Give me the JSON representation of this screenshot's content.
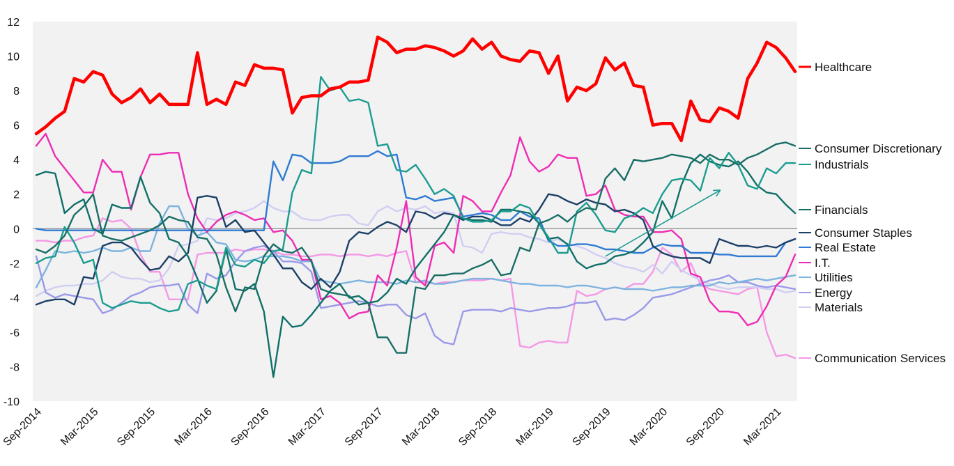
{
  "chart_data": {
    "type": "line",
    "title": "",
    "xlabel": "",
    "ylabel": "",
    "ylim": [
      -10,
      12
    ],
    "yticks": [
      12,
      10,
      8,
      6,
      4,
      2,
      0,
      -2,
      -4,
      -6,
      -8,
      -10
    ],
    "xticks": [
      "Sep-2014",
      "Mar-2015",
      "Sep-2015",
      "Mar-2016",
      "Sep-2016",
      "Mar-2017",
      "Sep-2017",
      "Mar-2018",
      "Sep-2018",
      "Mar-2019",
      "Sep-2019",
      "Mar-2020",
      "Sep-2020",
      "Mar-2021"
    ],
    "x_start": "Sep-2014",
    "x_end": "Aug-2021",
    "grid": false,
    "background": "#f2f2f2",
    "legend": "right, labels at line ends",
    "series": [
      {
        "name": "Healthcare",
        "color": "#ff0000",
        "values": [
          5.5,
          5.9,
          6.4,
          6.8,
          8.7,
          8.5,
          9.1,
          8.9,
          7.8,
          7.3,
          7.6,
          8.1,
          7.3,
          7.8,
          7.2,
          7.2,
          7.2,
          10.2,
          7.2,
          7.5,
          7.2,
          8.5,
          8.3,
          9.5,
          9.3,
          9.3,
          9.2,
          6.7,
          7.6,
          7.7,
          7.7,
          8.1,
          8.2,
          8.5,
          8.5,
          8.6,
          11.1,
          10.8,
          10.2,
          10.4,
          10.4,
          10.6,
          10.5,
          10.3,
          10.0,
          10.3,
          11.0,
          10.4,
          10.8,
          10.0,
          9.8,
          9.7,
          10.3,
          10.2,
          9.0,
          10.0,
          7.4,
          8.2,
          8.0,
          8.4,
          9.9,
          9.2,
          9.6,
          8.3,
          8.2,
          6.0,
          6.1,
          6.1,
          5.1,
          7.4,
          6.3,
          6.2,
          7.0,
          6.8,
          6.4,
          8.7,
          9.6,
          10.8,
          10.5,
          9.9,
          9.1
        ]
      },
      {
        "name": "Consumer Discretionary",
        "color": "#1a6e66",
        "values": [
          -1.2,
          -1.4,
          -1.0,
          -0.4,
          0.8,
          1.3,
          2.0,
          -0.4,
          -0.6,
          -0.7,
          -0.5,
          -0.3,
          -0.1,
          0.2,
          0.7,
          0.5,
          0.4,
          -0.5,
          -0.6,
          -1.5,
          -3.4,
          -4.8,
          -3.4,
          -3.5,
          -1.6,
          -0.9,
          -1.3,
          -1.4,
          -1.1,
          -1.9,
          -3.5,
          -3.7,
          -3.8,
          -3.9,
          -4.4,
          -4.3,
          -6.3,
          -6.3,
          -7.2,
          -7.2,
          -3.4,
          -3.5,
          -2.7,
          -2.7,
          -2.6,
          -2.6,
          -2.3,
          -2.1,
          -1.8,
          -2.7,
          -2.6,
          -1.1,
          -1.3,
          0.3,
          0.5,
          0.8,
          0.4,
          0.9,
          1.2,
          1.1,
          2.9,
          3.5,
          2.8,
          4.0,
          3.9,
          4.0,
          4.1,
          4.3,
          4.2,
          4.1,
          3.8,
          4.3,
          4.0,
          4.0,
          3.7,
          4.1,
          4.3,
          4.6,
          4.9,
          5.0,
          4.8
        ]
      },
      {
        "name": "Industrials",
        "color": "#1b9c8f",
        "values": [
          -2.0,
          -1.7,
          -1.6,
          0.1,
          -0.8,
          -2.0,
          -1.8,
          -4.3,
          -4.6,
          -4.4,
          -4.2,
          -4.3,
          -4.3,
          -4.6,
          -4.8,
          -4.7,
          -3.2,
          -3.0,
          -3.3,
          -3.5,
          -1.1,
          -2.1,
          -2.2,
          -1.8,
          -2.0,
          -1.3,
          -1.2,
          2.1,
          3.4,
          3.2,
          8.8,
          8.0,
          8.2,
          7.4,
          7.5,
          7.3,
          4.8,
          4.9,
          3.4,
          3.3,
          3.7,
          2.9,
          2.0,
          2.3,
          1.9,
          0.6,
          0.4,
          0.4,
          0.5,
          1.0,
          1.0,
          1.4,
          1.2,
          0.3,
          -0.5,
          -1.4,
          -1.4,
          1.0,
          1.5,
          0.8,
          -0.1,
          -0.2,
          0.6,
          0.8,
          1.2,
          0.9,
          2.0,
          2.8,
          2.9,
          2.8,
          2.2,
          4.1,
          3.5,
          4.4,
          3.7,
          2.5,
          2.3,
          3.5,
          3.2,
          3.8,
          3.8
        ]
      },
      {
        "name": "Financials",
        "color": "#0f7068",
        "values": [
          3.1,
          3.3,
          3.2,
          0.9,
          1.4,
          1.7,
          0.0,
          -0.3,
          1.4,
          1.2,
          1.2,
          3.0,
          1.5,
          0.9,
          -0.6,
          -0.8,
          -1.6,
          -2.9,
          -4.3,
          -3.6,
          -1.2,
          -3.5,
          -3.6,
          -3.2,
          -4.8,
          -8.6,
          -5.1,
          -5.7,
          -5.6,
          -5.0,
          -4.3,
          -3.6,
          -3.2,
          -4.0,
          -3.9,
          -4.3,
          -4.2,
          -3.7,
          -2.9,
          -3.2,
          -2.3,
          -1.6,
          -0.9,
          -0.2,
          0.8,
          0.6,
          0.5,
          0.5,
          0.4,
          1.1,
          1.1,
          1.0,
          0.9,
          0.3,
          -0.6,
          -0.5,
          -0.9,
          -1.9,
          -2.3,
          -2.1,
          -2.0,
          -1.6,
          -1.5,
          -1.3,
          -0.8,
          -0.2,
          1.6,
          0.6,
          2.5,
          3.8,
          4.3,
          3.9,
          3.7,
          3.6,
          3.9,
          3.3,
          2.5,
          2.1,
          2.0,
          1.4,
          0.9
        ]
      },
      {
        "name": "Consumer Staples",
        "color": "#1c3f66",
        "values": [
          -4.4,
          -4.2,
          -4.1,
          -4.1,
          -4.4,
          -2.8,
          -2.9,
          -1.0,
          -0.8,
          -0.8,
          -1.1,
          -1.8,
          -2.4,
          -2.3,
          -1.6,
          -1.9,
          -1.4,
          1.8,
          1.9,
          1.8,
          0.1,
          0.5,
          -0.2,
          -0.1,
          -0.8,
          -1.5,
          -2.3,
          -2.3,
          -3.1,
          -3.5,
          -2.9,
          -3.4,
          -2.5,
          -0.7,
          -0.2,
          -0.3,
          0.1,
          0.4,
          0.2,
          -0.2,
          1.0,
          0.9,
          0.6,
          0.9,
          0.8,
          0.5,
          0.7,
          0.7,
          0.5,
          0.2,
          0.2,
          0.6,
          0.4,
          1.1,
          2.0,
          1.9,
          1.6,
          1.4,
          1.7,
          1.5,
          1.4,
          1.0,
          1.1,
          0.9,
          0.5,
          -1.0,
          -1.4,
          -1.6,
          -1.7,
          -1.7,
          -1.7,
          -2.0,
          -0.6,
          -0.8,
          -1.0,
          -1.0,
          -1.1,
          -1.0,
          -1.1,
          -0.8,
          -0.6
        ]
      },
      {
        "name": "Real Estate",
        "color": "#2e7bd3",
        "values": [
          0.0,
          -0.1,
          -0.1,
          -0.1,
          -0.1,
          -0.1,
          -0.1,
          -0.1,
          -0.1,
          -0.1,
          -0.1,
          -0.1,
          -0.1,
          -0.1,
          -0.1,
          -0.1,
          -0.1,
          -0.1,
          -0.1,
          -0.1,
          -0.1,
          -0.1,
          -0.1,
          -0.1,
          -0.1,
          3.9,
          2.8,
          4.3,
          4.2,
          3.8,
          3.8,
          3.8,
          3.9,
          4.2,
          4.2,
          4.2,
          4.5,
          4.2,
          4.3,
          1.8,
          1.7,
          1.9,
          1.6,
          1.7,
          1.8,
          0.7,
          0.8,
          0.9,
          0.8,
          0.5,
          0.5,
          1.0,
          0.7,
          0.6,
          -0.7,
          -1.0,
          -1.0,
          -0.9,
          -0.9,
          -1.0,
          -1.2,
          -1.2,
          -1.3,
          -1.4,
          -1.4,
          -1.1,
          -0.9,
          -1.0,
          -1.0,
          -1.4,
          -1.4,
          -1.4,
          -1.5,
          -1.5,
          -1.6,
          -1.6,
          -1.6,
          -1.6,
          -1.6,
          -0.8,
          -0.6
        ]
      },
      {
        "name": "I.T.",
        "color": "#ee2cb4",
        "values": [
          4.8,
          5.5,
          4.2,
          3.5,
          2.8,
          2.1,
          2.1,
          4.0,
          3.3,
          3.3,
          1.1,
          3.0,
          4.3,
          4.3,
          4.4,
          4.4,
          2.0,
          0.6,
          -0.2,
          0.4,
          0.8,
          1.0,
          0.8,
          0.5,
          0.6,
          -0.2,
          -0.1,
          -0.7,
          -1.8,
          -1.8,
          -4.1,
          -3.9,
          -4.3,
          -5.2,
          -4.9,
          -4.8,
          -2.7,
          -3.3,
          -1.1,
          1.6,
          -2.8,
          -3.3,
          -1.0,
          -0.8,
          -1.4,
          1.9,
          1.6,
          1.0,
          1.0,
          2.1,
          3.1,
          5.3,
          3.9,
          3.3,
          3.6,
          4.3,
          4.1,
          4.1,
          1.9,
          2.0,
          2.5,
          1.1,
          0.8,
          0.7,
          0.7,
          -0.2,
          -0.2,
          -0.1,
          -0.6,
          -2.6,
          -2.8,
          -4.2,
          -4.8,
          -4.8,
          -4.9,
          -5.6,
          -5.4,
          -4.5,
          -3.3,
          -2.8,
          -1.5
        ]
      },
      {
        "name": "Utilities",
        "color": "#7db3df",
        "values": [
          -3.4,
          -2.4,
          -1.3,
          -1.4,
          -1.3,
          -1.4,
          -1.3,
          -1.1,
          -1.3,
          -1.3,
          -1.1,
          -1.3,
          -1.3,
          0.3,
          1.3,
          1.3,
          0.0,
          -0.4,
          -0.2,
          -0.8,
          -0.9,
          -1.8,
          -1.9,
          -1.8,
          -1.6,
          -1.6,
          -1.6,
          -1.7,
          -1.9,
          -1.9,
          -3.0,
          -3.1,
          -3.2,
          -3.1,
          -3.0,
          -3.1,
          -3.1,
          -3.1,
          -3.2,
          -3.0,
          -3.1,
          -3.0,
          -3.2,
          -3.2,
          -3.1,
          -3.0,
          -2.9,
          -2.9,
          -2.9,
          -3.0,
          -3.1,
          -3.2,
          -3.2,
          -3.3,
          -3.3,
          -3.3,
          -3.4,
          -3.3,
          -3.3,
          -3.4,
          -3.5,
          -3.4,
          -3.5,
          -3.5,
          -3.5,
          -3.6,
          -3.5,
          -3.4,
          -3.4,
          -3.3,
          -3.3,
          -3.3,
          -3.1,
          -3.2,
          -3.1,
          -3.0,
          -2.9,
          -3.0,
          -2.9,
          -2.8,
          -2.7
        ]
      },
      {
        "name": "Energy",
        "color": "#9a99e8",
        "values": [
          -1.6,
          -3.7,
          -4.0,
          -3.8,
          -3.9,
          -4.0,
          -4.1,
          -4.9,
          -4.7,
          -4.3,
          -3.9,
          -3.7,
          -3.4,
          -3.3,
          -3.3,
          -3.2,
          -4.4,
          -4.9,
          -2.6,
          -2.9,
          -2.7,
          -1.9,
          -1.3,
          -1.1,
          -1.0,
          -1.3,
          -1.9,
          -1.9,
          -2.0,
          -2.5,
          -4.6,
          -4.5,
          -4.4,
          -4.3,
          -4.2,
          -4.3,
          -4.5,
          -4.4,
          -4.4,
          -5.0,
          -5.2,
          -4.9,
          -6.2,
          -6.6,
          -6.7,
          -4.8,
          -4.7,
          -4.7,
          -4.7,
          -4.8,
          -4.6,
          -4.7,
          -4.8,
          -4.7,
          -4.6,
          -4.6,
          -4.5,
          -4.3,
          -4.3,
          -4.2,
          -5.3,
          -5.2,
          -5.3,
          -5.0,
          -4.6,
          -4.0,
          -3.9,
          -3.8,
          -3.6,
          -3.4,
          -3.2,
          -3.0,
          -2.9,
          -2.7,
          -3.1,
          -3.1,
          -3.3,
          -3.4,
          -3.3,
          -3.4,
          -3.5
        ]
      },
      {
        "name": "Materials",
        "color": "#d0cef2",
        "values": [
          -3.9,
          -3.6,
          -3.4,
          -3.3,
          -3.3,
          -3.2,
          -3.2,
          -3.0,
          -2.5,
          -2.8,
          -2.9,
          -2.9,
          -3.1,
          -3.0,
          -2.3,
          -1.0,
          -0.9,
          -0.7,
          0.6,
          0.5,
          0.6,
          0.9,
          1.0,
          1.2,
          1.6,
          1.2,
          1.0,
          1.0,
          0.6,
          0.5,
          0.5,
          0.7,
          0.8,
          0.8,
          0.3,
          0.2,
          1.0,
          1.3,
          1.0,
          1.2,
          1.1,
          1.3,
          0.9,
          1.0,
          0.9,
          -1.0,
          -1.1,
          -1.4,
          -0.3,
          -0.2,
          -0.3,
          -0.3,
          -0.5,
          -0.6,
          -0.8,
          -0.6,
          -0.9,
          -1.0,
          -1.2,
          -1.5,
          -1.7,
          -2.0,
          -2.2,
          -2.3,
          -2.5,
          -2.1,
          -2.6,
          -1.9,
          -2.4,
          -2.7,
          -3.0,
          -3.2,
          -3.4,
          -3.5,
          -3.4,
          -3.4,
          -3.4,
          -3.5,
          -3.5,
          -3.7,
          -3.6
        ]
      },
      {
        "name": "Communication Services",
        "color": "#f598e5",
        "values": [
          -0.7,
          -0.7,
          -0.8,
          -0.7,
          -0.7,
          -0.5,
          -0.4,
          0.6,
          0.4,
          0.5,
          0.0,
          -1.5,
          -2.5,
          -2.5,
          -4.1,
          -4.1,
          -4.1,
          -1.5,
          -1.4,
          -1.4,
          -1.4,
          -1.2,
          -1.3,
          -1.2,
          -1.2,
          -1.3,
          -1.5,
          -1.5,
          -1.6,
          -1.6,
          -1.5,
          -1.5,
          -1.6,
          -1.5,
          -1.5,
          -1.6,
          -1.5,
          -1.6,
          -1.4,
          -1.3,
          -3.1,
          -3.1,
          -3.2,
          -3.1,
          -3.1,
          -3.0,
          -3.0,
          -3.0,
          -2.9,
          -3.0,
          -2.9,
          -6.8,
          -6.9,
          -6.6,
          -6.5,
          -6.6,
          -6.6,
          -3.6,
          -3.9,
          -3.8,
          -3.5,
          -3.4,
          -3.5,
          -3.2,
          -3.2,
          -2.5,
          -1.1,
          -1.5,
          -2.5,
          -2.0,
          -3.2,
          -3.5,
          -3.6,
          -3.7,
          -3.8,
          -3.5,
          -3.4,
          -6.0,
          -7.4,
          -7.3,
          -7.5
        ]
      }
    ],
    "annotations": [
      {
        "type": "arrow",
        "from_month": "Sep-2019",
        "from_value": -1.6,
        "to_month": "Sep-2020",
        "to_value": 2.2,
        "color": "#1b9c8f"
      }
    ]
  }
}
